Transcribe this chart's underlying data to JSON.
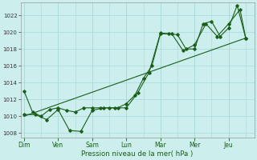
{
  "xlabel": "Pression niveau de la mer( hPa )",
  "bg_color": "#cceeed",
  "grid_color": "#aad8d8",
  "line_color": "#1a5e1a",
  "ylim": [
    1007.5,
    1023.5
  ],
  "yticks": [
    1008,
    1010,
    1012,
    1014,
    1016,
    1018,
    1020,
    1022
  ],
  "day_labels": [
    "Dim",
    "Ven",
    "Sam",
    "Lun",
    "Mar",
    "Mer",
    "Jeu"
  ],
  "day_positions": [
    0,
    2,
    4,
    6,
    8,
    10,
    12
  ],
  "xlim": [
    -0.2,
    13.5
  ],
  "series1_x": [
    0,
    0.5,
    1,
    1.5,
    2,
    2.5,
    3,
    3.5,
    4,
    4.5,
    5,
    5.5,
    6,
    6.5,
    7,
    7.5,
    8,
    8.5,
    9,
    9.5,
    10,
    10.5,
    11,
    11.5,
    12,
    12.5,
    13
  ],
  "series1_y": [
    1013.0,
    1010.5,
    1010.0,
    1010.8,
    1011.0,
    1010.7,
    1010.5,
    1011.0,
    1011.0,
    1011.0,
    1011.0,
    1011.0,
    1011.5,
    1012.5,
    1014.5,
    1016.0,
    1019.8,
    1019.8,
    1019.7,
    1018.0,
    1018.0,
    1021.0,
    1021.3,
    1019.5,
    1020.5,
    1023.2,
    1019.3
  ],
  "series2_x": [
    0,
    0.67,
    1.33,
    2,
    2.67,
    3.33,
    4,
    4.67,
    5.33,
    6,
    6.67,
    7.33,
    8,
    8.67,
    9.33,
    10,
    10.67,
    11.33,
    12,
    12.67,
    13
  ],
  "series2_y": [
    1010.2,
    1010.2,
    1009.6,
    1010.8,
    1008.3,
    1008.2,
    1010.7,
    1011.0,
    1011.0,
    1011.0,
    1012.8,
    1015.2,
    1019.9,
    1019.8,
    1017.8,
    1018.5,
    1021.0,
    1019.5,
    1021.0,
    1022.7,
    1019.3
  ],
  "trend_x": [
    0,
    13
  ],
  "trend_y": [
    1010.0,
    1019.3
  ]
}
